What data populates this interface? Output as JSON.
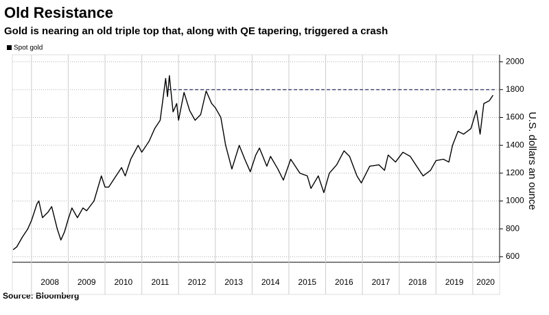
{
  "chart_data": {
    "type": "line",
    "title": "Old Resistance",
    "subtitle": "Gold is nearing an old triple top that, along with QE tapering, triggered a crash",
    "source": "Source: Bloomberg",
    "y_label": "U.S. dollars an ounce",
    "x": [
      2007.5,
      2007.6,
      2007.75,
      2007.9,
      2008.0,
      2008.15,
      2008.2,
      2008.3,
      2008.45,
      2008.55,
      2008.7,
      2008.8,
      2008.9,
      2009.0,
      2009.1,
      2009.25,
      2009.4,
      2009.5,
      2009.7,
      2009.9,
      2010.0,
      2010.1,
      2010.3,
      2010.45,
      2010.55,
      2010.7,
      2010.9,
      2011.0,
      2011.2,
      2011.35,
      2011.5,
      2011.65,
      2011.7,
      2011.75,
      2011.85,
      2011.95,
      2012.0,
      2012.15,
      2012.3,
      2012.45,
      2012.6,
      2012.75,
      2012.9,
      2013.0,
      2013.15,
      2013.28,
      2013.45,
      2013.65,
      2013.8,
      2013.95,
      2014.1,
      2014.2,
      2014.4,
      2014.5,
      2014.7,
      2014.85,
      2015.05,
      2015.3,
      2015.5,
      2015.6,
      2015.8,
      2015.95,
      2016.1,
      2016.3,
      2016.5,
      2016.65,
      2016.85,
      2016.97,
      2017.2,
      2017.45,
      2017.6,
      2017.7,
      2017.9,
      2018.1,
      2018.3,
      2018.5,
      2018.65,
      2018.85,
      2019.0,
      2019.2,
      2019.35,
      2019.45,
      2019.6,
      2019.75,
      2019.95,
      2020.1,
      2020.2,
      2020.3,
      2020.45,
      2020.55
    ],
    "series": [
      {
        "name": "Spot gold",
        "color": "#000000",
        "values": [
          650,
          670,
          740,
          800,
          860,
          980,
          1000,
          880,
          920,
          960,
          800,
          720,
          780,
          870,
          950,
          880,
          950,
          930,
          1000,
          1180,
          1100,
          1100,
          1180,
          1240,
          1180,
          1300,
          1400,
          1350,
          1430,
          1520,
          1580,
          1880,
          1750,
          1900,
          1640,
          1700,
          1580,
          1780,
          1650,
          1580,
          1620,
          1790,
          1700,
          1670,
          1600,
          1400,
          1230,
          1400,
          1300,
          1210,
          1330,
          1380,
          1250,
          1320,
          1230,
          1150,
          1300,
          1200,
          1180,
          1090,
          1180,
          1060,
          1200,
          1260,
          1360,
          1320,
          1180,
          1130,
          1250,
          1260,
          1220,
          1330,
          1280,
          1350,
          1320,
          1240,
          1180,
          1220,
          1290,
          1300,
          1280,
          1400,
          1500,
          1480,
          1520,
          1650,
          1480,
          1700,
          1720,
          1760
        ]
      }
    ],
    "xlim": [
      2007.48,
      2020.73
    ],
    "xticks": [
      {
        "value": 2008.5,
        "label": "2008"
      },
      {
        "value": 2009.5,
        "label": "2009"
      },
      {
        "value": 2010.5,
        "label": "2010"
      },
      {
        "value": 2011.5,
        "label": "2011"
      },
      {
        "value": 2012.5,
        "label": "2012"
      },
      {
        "value": 2013.5,
        "label": "2013"
      },
      {
        "value": 2014.5,
        "label": "2014"
      },
      {
        "value": 2015.5,
        "label": "2015"
      },
      {
        "value": 2016.5,
        "label": "2016"
      },
      {
        "value": 2017.5,
        "label": "2017"
      },
      {
        "value": 2018.5,
        "label": "2018"
      },
      {
        "value": 2019.5,
        "label": "2019"
      },
      {
        "value": 2020.35,
        "label": "2020"
      }
    ],
    "xgrid": [
      2008,
      2009,
      2010,
      2011,
      2012,
      2013,
      2014,
      2015,
      2016,
      2017,
      2018,
      2019,
      2020
    ],
    "ylim": [
      560,
      2050
    ],
    "yticks": [
      600,
      800,
      1000,
      1200,
      1400,
      1600,
      1800,
      2000
    ],
    "reference_line": {
      "value": 1800,
      "x": [
        2011.7,
        2020.6
      ],
      "color": "#1f2a5a"
    },
    "grid": true
  }
}
